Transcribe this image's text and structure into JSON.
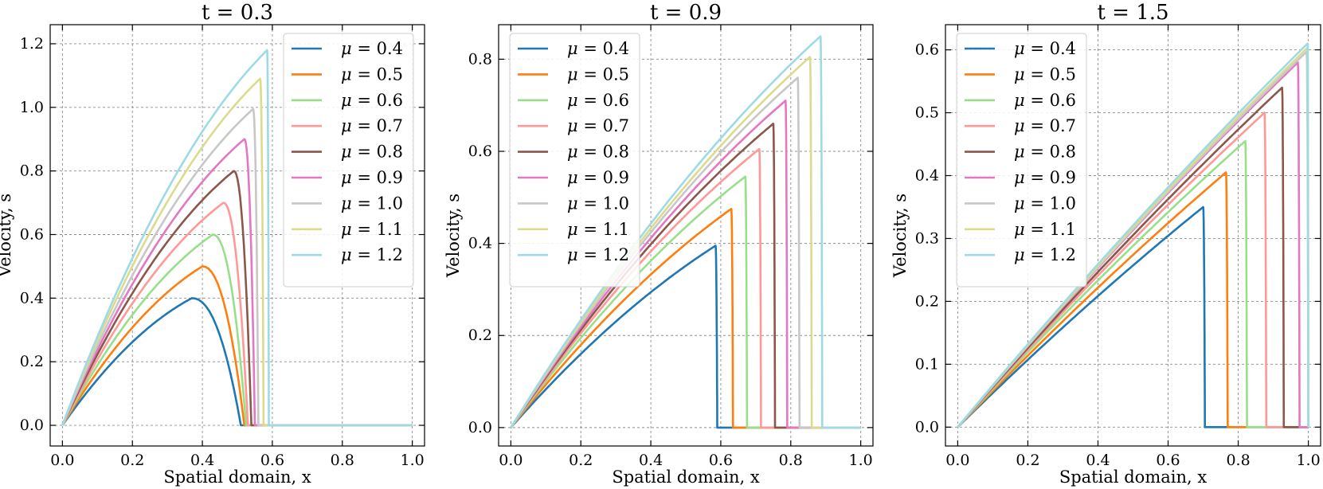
{
  "colors": [
    "#1f77b4",
    "#ff7f0e",
    "#98df8a",
    "#ff9896",
    "#8c564b",
    "#e377c2",
    "#c7c7c7",
    "#dbdb8d",
    "#9edae5"
  ],
  "chart_data": [
    {
      "type": "line",
      "title": "t = 0.3",
      "t": 0.3,
      "xlabel": "Spatial domain, x",
      "ylabel": "Velocity, s",
      "xlim": [
        -0.035,
        1.035
      ],
      "ylim": [
        -0.065,
        1.26
      ],
      "xticks": [
        "0.0",
        "0.2",
        "0.4",
        "0.6",
        "0.8",
        "1.0"
      ],
      "yticks": [
        "0.0",
        "0.2",
        "0.4",
        "0.6",
        "0.8",
        "1.0",
        "1.2"
      ],
      "legend_position": "top-right",
      "series": [
        {
          "name": "μ = 0.4",
          "mu_label": "μ",
          "value_label": " = 0.4",
          "peak_x": 0.37,
          "peak_y": 0.4,
          "front_x": 0.51
        },
        {
          "name": "μ = 0.5",
          "mu_label": "μ",
          "value_label": " = 0.5",
          "peak_x": 0.4,
          "peak_y": 0.5,
          "front_x": 0.52
        },
        {
          "name": "μ = 0.6",
          "mu_label": "μ",
          "value_label": " = 0.6",
          "peak_x": 0.43,
          "peak_y": 0.6,
          "front_x": 0.525
        },
        {
          "name": "μ = 0.7",
          "mu_label": "μ",
          "value_label": " = 0.7",
          "peak_x": 0.46,
          "peak_y": 0.7,
          "front_x": 0.53
        },
        {
          "name": "μ = 0.8",
          "mu_label": "μ",
          "value_label": " = 0.8",
          "peak_x": 0.49,
          "peak_y": 0.8,
          "front_x": 0.54
        },
        {
          "name": "μ = 0.9",
          "mu_label": "μ",
          "value_label": " = 0.9",
          "peak_x": 0.52,
          "peak_y": 0.9,
          "front_x": 0.55
        },
        {
          "name": "μ = 1.0",
          "mu_label": "μ",
          "value_label": " = 1.0",
          "peak_x": 0.545,
          "peak_y": 0.995,
          "front_x": 0.56
        },
        {
          "name": "μ = 1.1",
          "mu_label": "μ",
          "value_label": " = 1.1",
          "peak_x": 0.565,
          "peak_y": 1.09,
          "front_x": 0.575
        },
        {
          "name": "μ = 1.2",
          "mu_label": "μ",
          "value_label": " = 1.2",
          "peak_x": 0.585,
          "peak_y": 1.18,
          "front_x": 0.59
        }
      ]
    },
    {
      "type": "line",
      "title": "t = 0.9",
      "t": 0.9,
      "xlabel": "Spatial domain, x",
      "ylabel": "Velocity, s",
      "xlim": [
        -0.035,
        1.035
      ],
      "ylim": [
        -0.04,
        0.875
      ],
      "xticks": [
        "0.0",
        "0.2",
        "0.4",
        "0.6",
        "0.8",
        "1.0"
      ],
      "yticks": [
        "0.0",
        "0.2",
        "0.4",
        "0.6",
        "0.8"
      ],
      "legend_position": "top-left",
      "series": [
        {
          "name": "μ = 0.4",
          "mu_label": "μ",
          "value_label": " = 0.4",
          "peak_x": 0.585,
          "peak_y": 0.395,
          "front_x": 0.59
        },
        {
          "name": "μ = 0.5",
          "mu_label": "μ",
          "value_label": " = 0.5",
          "peak_x": 0.63,
          "peak_y": 0.475,
          "front_x": 0.635
        },
        {
          "name": "μ = 0.6",
          "mu_label": "μ",
          "value_label": " = 0.6",
          "peak_x": 0.67,
          "peak_y": 0.545,
          "front_x": 0.675
        },
        {
          "name": "μ = 0.7",
          "mu_label": "μ",
          "value_label": " = 0.7",
          "peak_x": 0.71,
          "peak_y": 0.605,
          "front_x": 0.715
        },
        {
          "name": "μ = 0.8",
          "mu_label": "μ",
          "value_label": " = 0.8",
          "peak_x": 0.75,
          "peak_y": 0.66,
          "front_x": 0.755
        },
        {
          "name": "μ = 0.9",
          "mu_label": "μ",
          "value_label": " = 0.9",
          "peak_x": 0.785,
          "peak_y": 0.71,
          "front_x": 0.79
        },
        {
          "name": "μ = 1.0",
          "mu_label": "μ",
          "value_label": " = 1.0",
          "peak_x": 0.82,
          "peak_y": 0.76,
          "front_x": 0.825
        },
        {
          "name": "μ = 1.1",
          "mu_label": "μ",
          "value_label": " = 1.1",
          "peak_x": 0.855,
          "peak_y": 0.805,
          "front_x": 0.86
        },
        {
          "name": "μ = 1.2",
          "mu_label": "μ",
          "value_label": " = 1.2",
          "peak_x": 0.885,
          "peak_y": 0.85,
          "front_x": 0.89
        }
      ]
    },
    {
      "type": "line",
      "title": "t = 1.5",
      "t": 1.5,
      "xlabel": "Spatial domain, x",
      "ylabel": "Velocity, s",
      "xlim": [
        -0.035,
        1.035
      ],
      "ylim": [
        -0.03,
        0.64
      ],
      "xticks": [
        "0.0",
        "0.2",
        "0.4",
        "0.6",
        "0.8",
        "1.0"
      ],
      "yticks": [
        "0.0",
        "0.1",
        "0.2",
        "0.3",
        "0.4",
        "0.5",
        "0.6"
      ],
      "legend_position": "top-left",
      "series": [
        {
          "name": "μ = 0.4",
          "mu_label": "μ",
          "value_label": " = 0.4",
          "peak_x": 0.7,
          "peak_y": 0.35,
          "front_x": 0.705
        },
        {
          "name": "μ = 0.5",
          "mu_label": "μ",
          "value_label": " = 0.5",
          "peak_x": 0.765,
          "peak_y": 0.405,
          "front_x": 0.77
        },
        {
          "name": "μ = 0.6",
          "mu_label": "μ",
          "value_label": " = 0.6",
          "peak_x": 0.82,
          "peak_y": 0.455,
          "front_x": 0.825
        },
        {
          "name": "μ = 0.7",
          "mu_label": "μ",
          "value_label": " = 0.7",
          "peak_x": 0.875,
          "peak_y": 0.5,
          "front_x": 0.88
        },
        {
          "name": "μ = 0.8",
          "mu_label": "μ",
          "value_label": " = 0.8",
          "peak_x": 0.925,
          "peak_y": 0.54,
          "front_x": 0.93
        },
        {
          "name": "μ = 0.9",
          "mu_label": "μ",
          "value_label": " = 0.9",
          "peak_x": 0.97,
          "peak_y": 0.58,
          "front_x": 0.975
        },
        {
          "name": "μ = 1.0",
          "mu_label": "μ",
          "value_label": " = 1.0",
          "peak_x": 0.995,
          "peak_y": 0.597,
          "front_x": 1.0
        },
        {
          "name": "μ = 1.1",
          "mu_label": "μ",
          "value_label": " = 1.1",
          "peak_x": 0.997,
          "peak_y": 0.603,
          "front_x": 1.0
        },
        {
          "name": "μ = 1.2",
          "mu_label": "μ",
          "value_label": " = 1.2",
          "peak_x": 0.998,
          "peak_y": 0.61,
          "front_x": 1.0
        }
      ]
    }
  ]
}
